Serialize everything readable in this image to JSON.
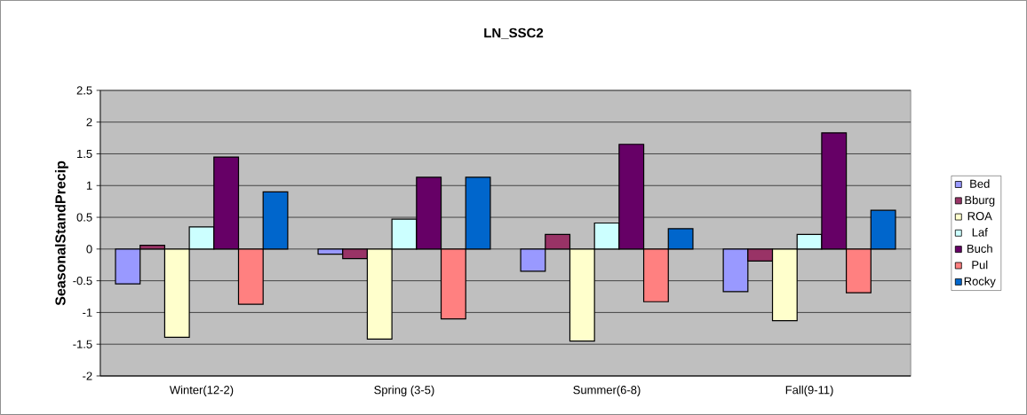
{
  "chart_data": {
    "type": "bar",
    "title": "LN_SSC2",
    "ylabel": "SeasonalStandPrecip",
    "categories": [
      "Winter(12-2)",
      "Spring (3-5)",
      "Summer(6-8)",
      "Fall(9-11)"
    ],
    "series": [
      {
        "name": "Bed",
        "color": "#9999ff",
        "values": [
          -0.55,
          -0.08,
          -0.35,
          -0.67
        ]
      },
      {
        "name": "Bburg",
        "color": "#993366",
        "values": [
          0.06,
          -0.15,
          0.23,
          -0.19
        ]
      },
      {
        "name": "ROA",
        "color": "#ffffcc",
        "values": [
          -1.39,
          -1.42,
          -1.45,
          -1.13
        ]
      },
      {
        "name": "Laf",
        "color": "#ccffff",
        "values": [
          0.35,
          0.47,
          0.41,
          0.23
        ]
      },
      {
        "name": "Buch",
        "color": "#660066",
        "values": [
          1.45,
          1.13,
          1.65,
          1.83
        ]
      },
      {
        "name": "Pul",
        "color": "#ff8080",
        "values": [
          -0.87,
          -1.1,
          -0.83,
          -0.69
        ]
      },
      {
        "name": "Rocky",
        "color": "#0066cc",
        "values": [
          0.9,
          1.13,
          0.32,
          0.61
        ]
      }
    ],
    "ylim": [
      -2,
      2.5
    ],
    "yticks": [
      -2,
      -1.5,
      -1,
      -0.5,
      0,
      0.5,
      1,
      1.5,
      2,
      2.5
    ],
    "grid": "y",
    "legend": "right"
  }
}
